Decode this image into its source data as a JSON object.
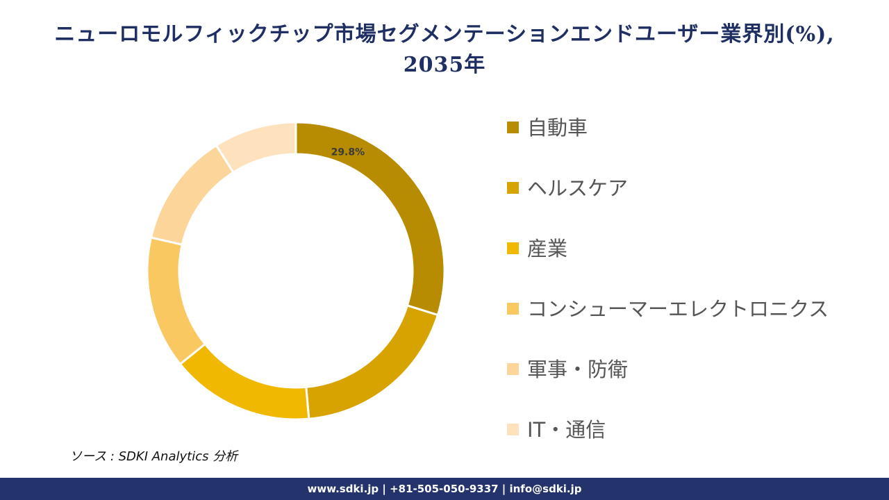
{
  "page": {
    "title": "ニューロモルフィックチップ市場セグメンテーションエンドユーザー業界別(%), 2035年",
    "source": "ソース : SDKI Analytics 分析",
    "footer": "www.sdki.jp | +81-505-050-9337 | info@sdki.jp"
  },
  "chart_data": {
    "type": "pie",
    "title": "ニューロモルフィックチップ市場セグメンテーションエンドユーザー業界別(%), 2035年",
    "donut": true,
    "legend_position": "right",
    "categories": [
      "自動車",
      "ヘルスケア",
      "産業",
      "コンシューマーエレクトロニクス",
      "軍事・防衛",
      "IT・通信"
    ],
    "values": [
      29.8,
      18.8,
      15.6,
      14.4,
      12.4,
      9.0
    ],
    "colors": [
      "#b78c00",
      "#d7a300",
      "#f0b800",
      "#fac861",
      "#fbd59a",
      "#fde2bd"
    ],
    "data_labels": [
      "29.8%",
      "",
      "",
      "",
      "",
      ""
    ]
  }
}
